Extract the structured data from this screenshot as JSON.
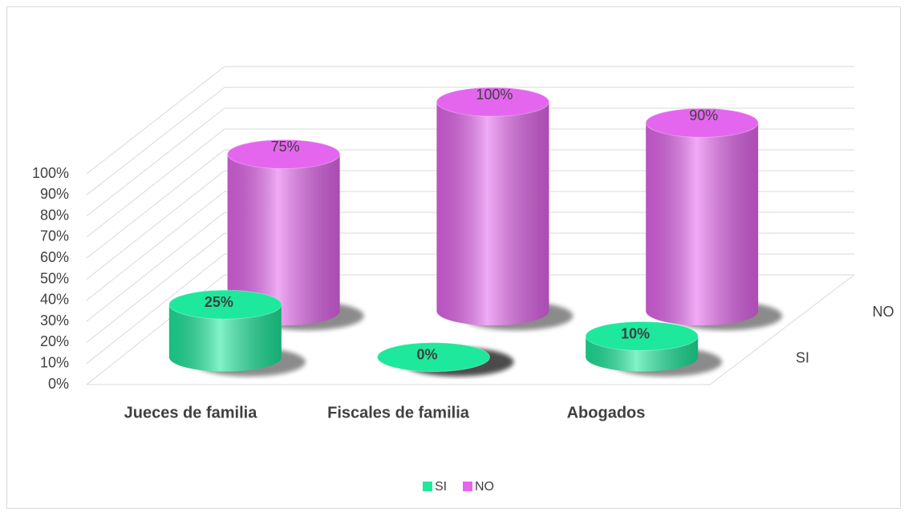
{
  "chart_data": {
    "type": "bar3d",
    "categories": [
      "Jueces de familia",
      "Fiscales de familia",
      "Abogados"
    ],
    "series": [
      {
        "name": "SI",
        "color": "#1de89c",
        "values": [
          25,
          0,
          10
        ],
        "value_labels": [
          "25%",
          "0%",
          "10%"
        ]
      },
      {
        "name": "NO",
        "color": "#e466ee",
        "values": [
          75,
          100,
          90
        ],
        "value_labels": [
          "75%",
          "100%",
          "90%"
        ]
      }
    ],
    "ylim": [
      0,
      100
    ],
    "yticks": [
      {
        "value": 0,
        "label": "0%"
      },
      {
        "value": 10,
        "label": "10%"
      },
      {
        "value": 20,
        "label": "20%"
      },
      {
        "value": 30,
        "label": "30%"
      },
      {
        "value": 40,
        "label": "40%"
      },
      {
        "value": 50,
        "label": "50%"
      },
      {
        "value": 60,
        "label": "60%"
      },
      {
        "value": 70,
        "label": "70%"
      },
      {
        "value": 80,
        "label": "80%"
      },
      {
        "value": 90,
        "label": "90%"
      },
      {
        "value": 100,
        "label": "100%"
      }
    ],
    "grid": true,
    "legend": "bottom"
  }
}
